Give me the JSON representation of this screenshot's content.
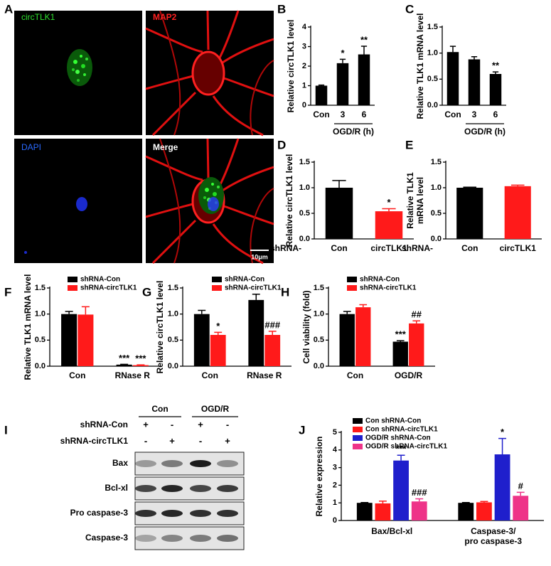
{
  "figure": {
    "panel_labels": [
      "A",
      "B",
      "C",
      "D",
      "E",
      "F",
      "G",
      "H",
      "I",
      "J"
    ],
    "image_labels": [
      "circTLK1",
      "MAP2",
      "DAPI",
      "Merge"
    ],
    "scale_bar": "10μm",
    "blot": {
      "groups": [
        "Con",
        "OGD/R"
      ],
      "rows": [
        {
          "label": "shRNA-Con",
          "signs": [
            "+",
            "-",
            "+",
            "-"
          ]
        },
        {
          "label": "shRNA-circTLK1",
          "signs": [
            "-",
            "+",
            "-",
            "+"
          ]
        }
      ],
      "bands": [
        "Bax",
        "Bcl-xl",
        "Pro caspase-3",
        "Caspase-3"
      ]
    }
  },
  "chart_data": [
    {
      "type": "bar",
      "y_label": "Relative circTLK1 level",
      "categories": [
        "Con",
        "3",
        "6"
      ],
      "x_group_label": "OGD/R (h)",
      "values": [
        1.0,
        2.15,
        2.6
      ],
      "errors": [
        0.03,
        0.2,
        0.42
      ],
      "annotations": [
        null,
        "*",
        "**"
      ],
      "color": "#000000",
      "ylim": [
        0,
        4
      ],
      "yticks": [
        0,
        1,
        2,
        3,
        4
      ]
    },
    {
      "type": "bar",
      "y_label": "Relative TLK1 mRNA level",
      "categories": [
        "Con",
        "3",
        "6"
      ],
      "x_group_label": "OGD/R (h)",
      "values": [
        1.02,
        0.88,
        0.6
      ],
      "errors": [
        0.11,
        0.05,
        0.04
      ],
      "annotations": [
        null,
        null,
        "**"
      ],
      "color": "#000000",
      "ylim": [
        0,
        1.5
      ],
      "yticks": [
        {
          "value": 0,
          "label": "0.0"
        },
        0.5,
        {
          "value": 1,
          "label": "1.0"
        },
        1.5
      ]
    },
    {
      "type": "bar",
      "y_label": "Relative circTLK1 level",
      "x_prefix": "shRNA-",
      "categories": [
        "Con",
        "circTLK1"
      ],
      "values": [
        1.0,
        0.54
      ],
      "errors": [
        0.14,
        0.05
      ],
      "annotations": [
        null,
        "*"
      ],
      "colors": [
        "#000000",
        "#ff1a1a"
      ],
      "ylim": [
        0,
        1.5
      ],
      "yticks": [
        {
          "value": 0,
          "label": "0.0"
        },
        0.5,
        {
          "value": 1,
          "label": "1.0"
        },
        1.5
      ]
    },
    {
      "type": "bar",
      "y_label": [
        "Relative TLK1",
        "mRNA level"
      ],
      "x_prefix": "shRNA-",
      "categories": [
        "Con",
        "circTLK1"
      ],
      "values": [
        1.0,
        1.03
      ],
      "errors": [
        0.01,
        0.02
      ],
      "colors": [
        "#000000",
        "#ff1a1a"
      ],
      "ylim": [
        0,
        1.5
      ],
      "yticks": [
        {
          "value": 0,
          "label": "0.0"
        },
        0.5,
        {
          "value": 1,
          "label": "1.0"
        },
        1.5
      ]
    },
    {
      "type": "grouped_bar",
      "y_label": "Relative TLK1 mRNA level",
      "categories": [
        "Con",
        "RNase R"
      ],
      "series": [
        {
          "name": "shRNA-Con",
          "color": "#000000",
          "values": [
            1.0,
            0.03
          ],
          "errors": [
            0.05,
            0.005
          ],
          "annotations": [
            null,
            "***"
          ]
        },
        {
          "name": "shRNA-circTLK1",
          "color": "#ff1a1a",
          "values": [
            0.99,
            0.02
          ],
          "errors": [
            0.15,
            0.005
          ],
          "annotations": [
            null,
            "***"
          ]
        }
      ],
      "ylim": [
        0,
        1.5
      ],
      "yticks": [
        {
          "value": 0,
          "label": "0.0"
        },
        0.5,
        {
          "value": 1,
          "label": "1.0"
        },
        1.5
      ]
    },
    {
      "type": "grouped_bar",
      "y_label": "Relative circTLK1 level",
      "categories": [
        "Con",
        "RNase R"
      ],
      "series": [
        {
          "name": "shRNA-Con",
          "color": "#000000",
          "values": [
            1.0,
            1.27
          ],
          "errors": [
            0.07,
            0.11
          ]
        },
        {
          "name": "shRNA-circTLK1",
          "color": "#ff1a1a",
          "values": [
            0.6,
            0.6
          ],
          "errors": [
            0.05,
            0.07
          ],
          "annotations": [
            "*",
            "###"
          ]
        }
      ],
      "ylim": [
        0,
        1.5
      ],
      "yticks": [
        {
          "value": 0,
          "label": "0.0"
        },
        0.5,
        {
          "value": 1,
          "label": "1.0"
        },
        1.5
      ]
    },
    {
      "type": "grouped_bar",
      "y_label": "Cell viability (fold)",
      "categories": [
        "Con",
        "OGD/R"
      ],
      "series": [
        {
          "name": "shRNA-Con",
          "color": "#000000",
          "values": [
            1.0,
            0.47
          ],
          "errors": [
            0.05,
            0.02
          ],
          "annotations": [
            null,
            "***"
          ]
        },
        {
          "name": "shRNA-circTLK1",
          "color": "#ff1a1a",
          "values": [
            1.13,
            0.82
          ],
          "errors": [
            0.05,
            0.05
          ],
          "annotations": [
            null,
            "##"
          ]
        }
      ],
      "ylim": [
        0,
        1.5
      ],
      "yticks": [
        {
          "value": 0,
          "label": "0.0"
        },
        0.5,
        {
          "value": 1,
          "label": "1.0"
        },
        1.5
      ]
    },
    {
      "type": "grouped_bar",
      "y_label": "Relative expression",
      "categories": [
        [
          "Bax/Bcl-xl"
        ],
        [
          "Caspase-3/",
          "pro caspase-3"
        ]
      ],
      "series": [
        {
          "name": "Con shRNA-Con",
          "color": "#000000",
          "values": [
            1.0,
            1.0
          ],
          "errors": [
            0.02,
            0.02
          ]
        },
        {
          "name": "Con shRNA-circTLK1",
          "color": "#ff1a1a",
          "values": [
            0.97,
            1.03
          ],
          "errors": [
            0.13,
            0.05
          ]
        },
        {
          "name": "OGD/R shRNA-Con",
          "color": "#1f1fcc",
          "values": [
            3.4,
            3.75
          ],
          "errors": [
            0.3,
            0.9
          ],
          "annotations": [
            "***",
            "*"
          ]
        },
        {
          "name": "OGD/R shRNA-circTLK1",
          "color": "#ee3388",
          "values": [
            1.08,
            1.4
          ],
          "errors": [
            0.15,
            0.2
          ],
          "annotations": [
            "###",
            "#"
          ]
        }
      ],
      "ylim": [
        0,
        5
      ],
      "yticks": [
        0,
        1,
        2,
        3,
        4,
        5
      ]
    }
  ]
}
